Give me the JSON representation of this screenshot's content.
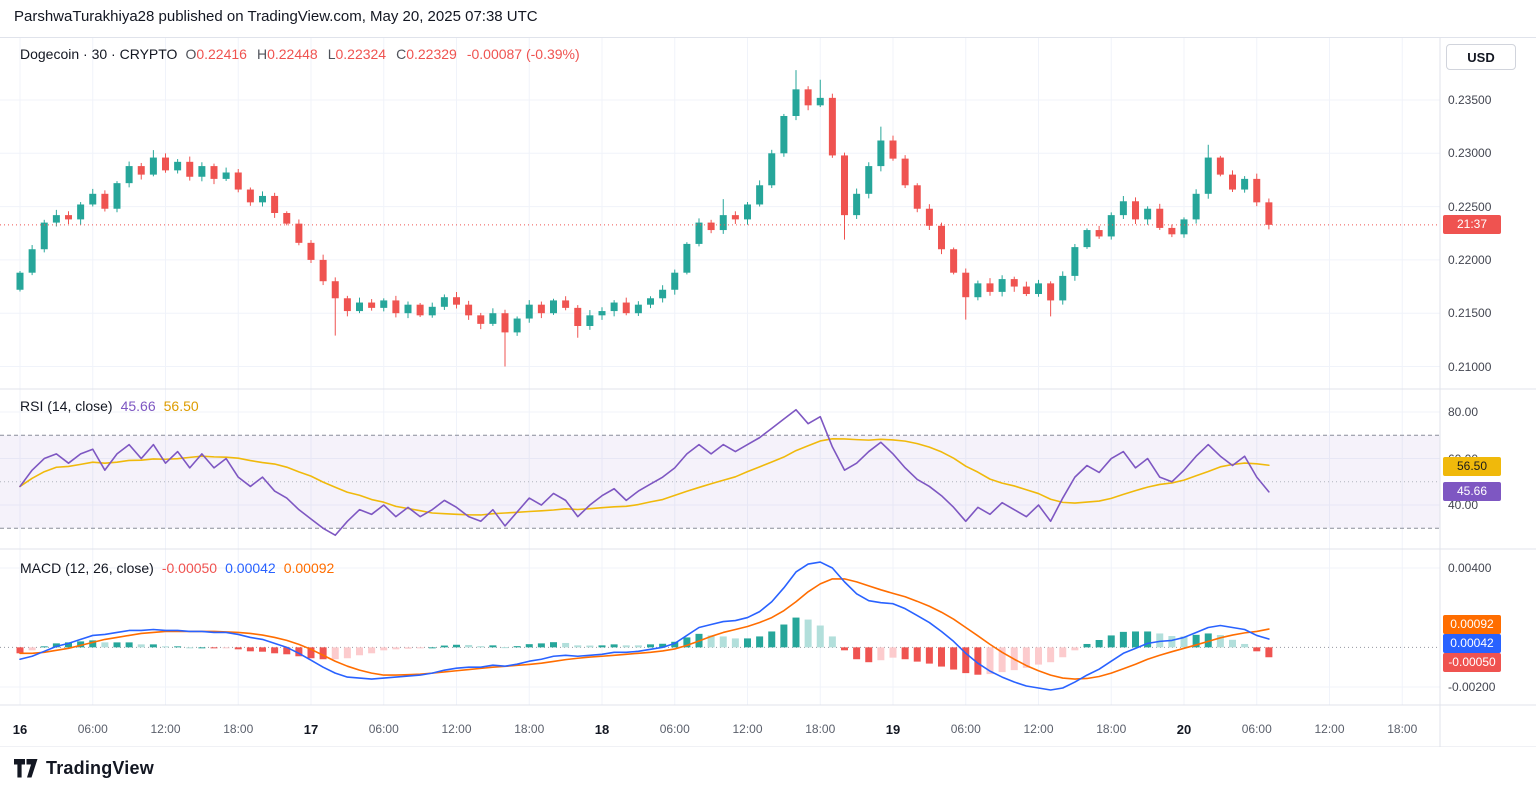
{
  "header": {
    "attribution": "ParshwaTurakhiya28 published on TradingView.com, May 20, 2025 07:38 UTC"
  },
  "toolbar": {
    "currency_button": "USD"
  },
  "footer": {
    "brand": "TradingView"
  },
  "x_axis": {
    "total_hours": 117,
    "labels": [
      {
        "text": "16",
        "hour": 0,
        "major": true
      },
      {
        "text": "06:00",
        "hour": 6
      },
      {
        "text": "12:00",
        "hour": 12
      },
      {
        "text": "18:00",
        "hour": 18
      },
      {
        "text": "17",
        "hour": 24,
        "major": true
      },
      {
        "text": "06:00",
        "hour": 30
      },
      {
        "text": "12:00",
        "hour": 36
      },
      {
        "text": "18:00",
        "hour": 42
      },
      {
        "text": "18",
        "hour": 48,
        "major": true
      },
      {
        "text": "06:00",
        "hour": 54
      },
      {
        "text": "12:00",
        "hour": 60
      },
      {
        "text": "18:00",
        "hour": 66
      },
      {
        "text": "19",
        "hour": 72,
        "major": true
      },
      {
        "text": "06:00",
        "hour": 78
      },
      {
        "text": "12:00",
        "hour": 84
      },
      {
        "text": "18:00",
        "hour": 90
      },
      {
        "text": "20",
        "hour": 96,
        "major": true
      },
      {
        "text": "06:00",
        "hour": 102
      },
      {
        "text": "12:00",
        "hour": 108
      },
      {
        "text": "18:00",
        "hour": 114
      }
    ]
  },
  "chart_data": [
    {
      "id": "price",
      "type": "candlestick",
      "legend": {
        "title": "Dogecoin · 30 · CRYPTO",
        "o_label": "O",
        "o": "0.22416",
        "h_label": "H",
        "h": "0.22448",
        "l_label": "L",
        "l": "0.22324",
        "c_label": "C",
        "c": "0.22329",
        "change": "-0.00087 (-0.39%)"
      },
      "up_color": "#26a69a",
      "down_color": "#ef5350",
      "y_domain": [
        0.208265,
        0.240816
      ],
      "y_ticks": [
        {
          "label": "0.23500",
          "value": 0.235
        },
        {
          "label": "0.23000",
          "value": 0.23
        },
        {
          "label": "0.22500",
          "value": 0.225
        },
        {
          "label": "0.22000",
          "value": 0.22
        },
        {
          "label": "0.21500",
          "value": 0.215
        },
        {
          "label": "0.21000",
          "value": 0.21
        }
      ],
      "last_price": 0.22329,
      "countdown_badge": {
        "text": "21:37",
        "color": "#ef5350"
      },
      "series": {
        "interval_hours": 1,
        "first_open": 0.2172,
        "default_wick": 0.0004,
        "closes": [
          0.2188,
          0.221,
          0.2235,
          0.2242,
          0.2238,
          0.2252,
          0.2262,
          0.2248,
          0.2272,
          0.2288,
          0.228,
          0.2296,
          0.2284,
          0.2292,
          0.2278,
          0.2288,
          0.2276,
          0.2282,
          0.2266,
          0.2254,
          0.226,
          0.2244,
          0.2234,
          0.2216,
          0.22,
          0.218,
          0.2164,
          0.2152,
          0.216,
          0.2155,
          0.2162,
          0.215,
          0.2158,
          0.2148,
          0.2156,
          0.2165,
          0.2158,
          0.2148,
          0.214,
          0.215,
          0.2132,
          0.2145,
          0.2158,
          0.215,
          0.2162,
          0.2155,
          0.2138,
          0.2148,
          0.2152,
          0.216,
          0.215,
          0.2158,
          0.2164,
          0.2172,
          0.2188,
          0.2215,
          0.2235,
          0.2228,
          0.2242,
          0.2238,
          0.2252,
          0.227,
          0.23,
          0.2335,
          0.236,
          0.2345,
          0.2352,
          0.2298,
          0.2242,
          0.2262,
          0.2288,
          0.2312,
          0.2295,
          0.227,
          0.2248,
          0.2232,
          0.221,
          0.2188,
          0.2165,
          0.2178,
          0.217,
          0.2182,
          0.2175,
          0.2168,
          0.2178,
          0.2162,
          0.2185,
          0.2212,
          0.2228,
          0.2222,
          0.2242,
          0.2255,
          0.2238,
          0.2248,
          0.223,
          0.2224,
          0.2238,
          0.2262,
          0.2296,
          0.228,
          0.2266,
          0.2276,
          0.2254,
          0.22329
        ],
        "wick_overrides": {
          "11": {
            "high": 0.2303
          },
          "26": {
            "low": 0.2129
          },
          "40": {
            "low": 0.21
          },
          "46": {
            "low": 0.2127
          },
          "58": {
            "high": 0.2257
          },
          "64": {
            "high": 0.2378
          },
          "66": {
            "high": 0.2369
          },
          "68": {
            "low": 0.2219
          },
          "71": {
            "high": 0.2325
          },
          "78": {
            "low": 0.2144
          },
          "85": {
            "low": 0.2147
          },
          "98": {
            "high": 0.2308
          }
        }
      }
    },
    {
      "id": "rsi",
      "type": "line",
      "legend": {
        "title": "RSI (14, close)",
        "value": "45.66",
        "ma_value": "56.50"
      },
      "colors": {
        "rsi": "#7e57c2",
        "ma": "#f0b90b",
        "band": "#7e57c2"
      },
      "levels": {
        "upper": 70,
        "middle": 50,
        "lower": 30
      },
      "y_domain": [
        22.8,
        88.2
      ],
      "y_ticks": [
        {
          "label": "80.00",
          "value": 80
        },
        {
          "label": "60.00",
          "value": 60
        },
        {
          "label": "40.00",
          "value": 40
        }
      ],
      "badges": [
        {
          "text": "56.50",
          "value": 56.5,
          "color": "#f0b90b",
          "text_color": "#1c1c1c"
        },
        {
          "text": "45.66",
          "value": 45.66,
          "color": "#7e57c2",
          "text_color": "#ffffff"
        }
      ],
      "ma_period": 14,
      "values": [
        48,
        55,
        60,
        62,
        58,
        62,
        64,
        55,
        62,
        66,
        60,
        66,
        58,
        63,
        56,
        62,
        56,
        60,
        52,
        48,
        52,
        46,
        43,
        38,
        34,
        30,
        27,
        33,
        38,
        36,
        40,
        35,
        39,
        35,
        38,
        42,
        39,
        35,
        33,
        38,
        31,
        37,
        43,
        40,
        45,
        42,
        35,
        40,
        44,
        47,
        42,
        46,
        49,
        52,
        56,
        62,
        66,
        62,
        66,
        63,
        66,
        69,
        73,
        77,
        81,
        75,
        78,
        65,
        55,
        58,
        63,
        67,
        62,
        56,
        51,
        48,
        44,
        39,
        33,
        39,
        36,
        41,
        38,
        35,
        40,
        33,
        43,
        52,
        57,
        54,
        60,
        63,
        56,
        60,
        52,
        50,
        55,
        61,
        66,
        61,
        57,
        61,
        52,
        45.66
      ]
    },
    {
      "id": "macd",
      "type": "macd",
      "legend": {
        "title": "MACD (12, 26, close)",
        "hist": "-0.00050",
        "macd": "0.00042",
        "signal": "0.00092"
      },
      "colors": {
        "macd": "#2962ff",
        "signal": "#ff6d00",
        "hist_up": "#26a69a",
        "hist_up_weak": "#b2dfdb",
        "hist_down": "#ef5350",
        "hist_down_weak": "#fccbcd"
      },
      "y_domain": [
        -0.002907,
        0.004756
      ],
      "y_ticks": [
        {
          "label": "0.00400",
          "value": 0.004
        },
        {
          "label": "-0.00200",
          "value": -0.002
        }
      ],
      "badges": [
        {
          "text": "0.00092",
          "value": 0.00092,
          "color": "#ff6d00",
          "text_color": "#ffffff"
        },
        {
          "text": "0.00042",
          "value": 0.00042,
          "color": "#2962ff",
          "text_color": "#ffffff"
        },
        {
          "text": "-0.00050",
          "value": -0.0005,
          "color": "#ef5350",
          "text_color": "#ffffff"
        }
      ],
      "macd": [
        -0.0006,
        -0.00045,
        -0.0002,
        5e-05,
        0.0002,
        0.0004,
        0.0006,
        0.00065,
        0.00075,
        0.00085,
        0.00085,
        0.0009,
        0.00085,
        0.00085,
        0.0008,
        0.0008,
        0.00075,
        0.00075,
        0.00065,
        0.0005,
        0.0004,
        0.0002,
        0.0,
        -0.0003,
        -0.00065,
        -0.001,
        -0.0013,
        -0.0015,
        -0.00155,
        -0.0016,
        -0.00155,
        -0.0015,
        -0.00145,
        -0.0014,
        -0.0013,
        -0.00115,
        -0.00105,
        -0.001,
        -0.001,
        -0.0009,
        -0.00095,
        -0.00085,
        -0.0007,
        -0.0006,
        -0.00045,
        -0.0004,
        -0.00045,
        -0.0004,
        -0.00035,
        -0.00025,
        -0.00025,
        -0.0002,
        -0.0001,
        0.0,
        0.0002,
        0.0006,
        0.001,
        0.00115,
        0.0013,
        0.00135,
        0.0015,
        0.0018,
        0.0023,
        0.003,
        0.0038,
        0.0042,
        0.0043,
        0.004,
        0.0033,
        0.0027,
        0.00235,
        0.00225,
        0.0022,
        0.00195,
        0.0016,
        0.00125,
        0.0008,
        0.0003,
        -0.0003,
        -0.0008,
        -0.0012,
        -0.0015,
        -0.00175,
        -0.00195,
        -0.00205,
        -0.00215,
        -0.00205,
        -0.00175,
        -0.0014,
        -0.0011,
        -0.0007,
        -0.0003,
        -5e-05,
        0.0002,
        0.0003,
        0.00035,
        0.0005,
        0.00075,
        0.001,
        0.0011,
        0.001,
        0.0009,
        0.0006,
        0.00042
      ],
      "signal": [
        -0.0003,
        -0.0003,
        -0.00025,
        -0.00015,
        -5e-05,
        0.0001,
        0.00025,
        0.0004,
        0.0005,
        0.0006,
        0.0007,
        0.00075,
        0.0008,
        0.0008,
        0.0008,
        0.0008,
        0.0008,
        0.00078,
        0.00075,
        0.0007,
        0.00062,
        0.0005,
        0.00035,
        0.00015,
        -0.0001,
        -0.0004,
        -0.0007,
        -0.00095,
        -0.00115,
        -0.0013,
        -0.0014,
        -0.0014,
        -0.00138,
        -0.00135,
        -0.0013,
        -0.00124,
        -0.00118,
        -0.00112,
        -0.00106,
        -0.001,
        -0.00096,
        -0.00091,
        -0.00086,
        -0.0008,
        -0.00071,
        -0.00062,
        -0.00055,
        -0.00049,
        -0.00045,
        -0.0004,
        -0.00035,
        -0.0003,
        -0.00025,
        -0.00018,
        -8e-05,
        0.0001,
        0.00032,
        0.00055,
        0.00075,
        0.0009,
        0.00105,
        0.00125,
        0.0015,
        0.00185,
        0.0023,
        0.0028,
        0.0032,
        0.00345,
        0.00345,
        0.0033,
        0.0031,
        0.0029,
        0.00272,
        0.00255,
        0.00232,
        0.00207,
        0.00177,
        0.00142,
        0.001,
        0.00058,
        0.00015,
        -0.00025,
        -0.0006,
        -0.00092,
        -0.00118,
        -0.0014,
        -0.00155,
        -0.0016,
        -0.00157,
        -0.00147,
        -0.0013,
        -0.00108,
        -0.00085,
        -0.0006,
        -0.0004,
        -0.00022,
        -5e-05,
        0.00012,
        0.0003,
        0.00048,
        0.00062,
        0.00073,
        0.0008,
        0.00092
      ]
    }
  ]
}
